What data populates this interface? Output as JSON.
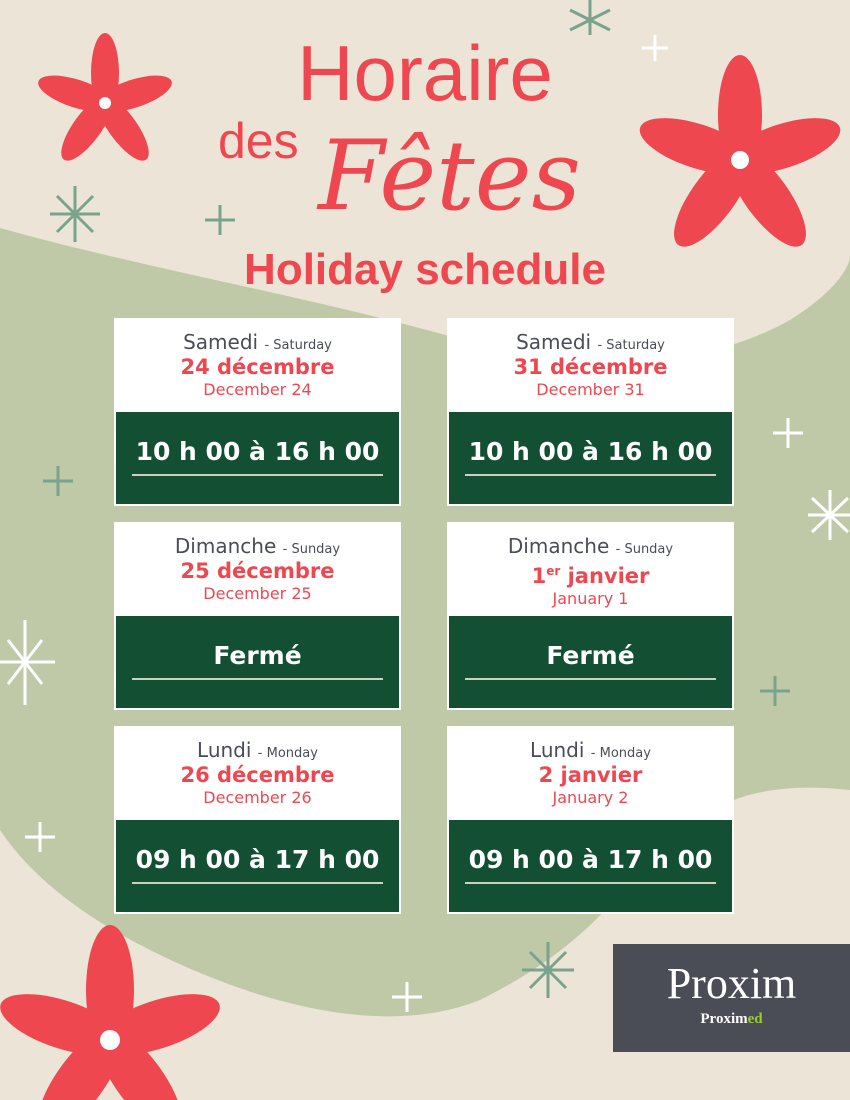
{
  "header": {
    "title_line1": "Horaire",
    "title_des": "des",
    "title_fetes": "Fêtes",
    "subtitle": "Holiday schedule"
  },
  "cards": [
    {
      "day_fr": "Samedi",
      "day_en": "- Saturday",
      "date_fr": "24 décembre",
      "date_sup": "",
      "date_en": "December 24",
      "hours": "10 h 00 à 16 h 00"
    },
    {
      "day_fr": "Samedi",
      "day_en": "- Saturday",
      "date_fr": "31 décembre",
      "date_sup": "",
      "date_en": "December 31",
      "hours": "10 h 00 à 16 h 00"
    },
    {
      "day_fr": "Dimanche",
      "day_en": "- Sunday",
      "date_fr": "25 décembre",
      "date_sup": "",
      "date_en": "December 25",
      "hours": "Fermé"
    },
    {
      "day_fr": "Dimanche",
      "day_en": "- Sunday",
      "date_fr": "1",
      "date_sup": "er",
      "date_fr_rest": " janvier",
      "date_en": "January 1",
      "hours": "Fermé"
    },
    {
      "day_fr": "Lundi",
      "day_en": "- Monday",
      "date_fr": "26 décembre",
      "date_sup": "",
      "date_en": "December 26",
      "hours": "09 h 00 à 17 h 00"
    },
    {
      "day_fr": "Lundi",
      "day_en": "- Monday",
      "date_fr": "2 janvier",
      "date_sup": "",
      "date_en": "January 2",
      "hours": "09 h 00 à 17 h 00"
    }
  ],
  "logo": {
    "main": "Proxim",
    "sub_a": "Proxim",
    "sub_b": "ed"
  },
  "colors": {
    "background": "#ece5d7",
    "wave": "#bfc9a7",
    "red": "#ef4750",
    "green": "#124f33",
    "logo_bg": "#4a4d55"
  }
}
